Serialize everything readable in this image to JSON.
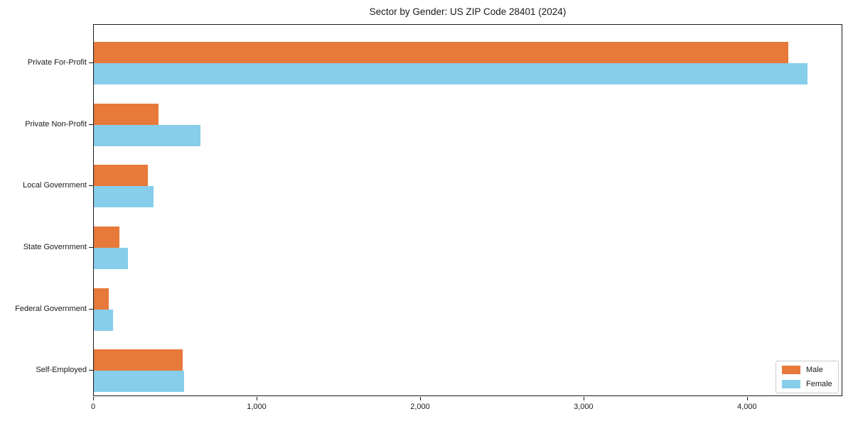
{
  "title": "Sector by Gender: US ZIP Code 28401 (2024)",
  "colors": {
    "male": "#e7793a",
    "female": "#87ceeb",
    "spine": "#1a1a1a",
    "legend_border": "#cccccc",
    "background": "#ffffff"
  },
  "chart_data": {
    "type": "bar",
    "orientation": "horizontal",
    "title": "Sector by Gender: US ZIP Code 28401 (2024)",
    "categories": [
      "Private For-Profit",
      "Private Non-Profit",
      "Local Government",
      "State Government",
      "Federal Government",
      "Self-Employed"
    ],
    "series": [
      {
        "name": "Male",
        "color": "#e7793a",
        "values": [
          4250,
          397,
          332,
          158,
          90,
          545
        ]
      },
      {
        "name": "Female",
        "color": "#87ceeb",
        "values": [
          4365,
          652,
          365,
          210,
          119,
          552
        ]
      }
    ],
    "xlabel": "",
    "ylabel": "",
    "xlim": [
      0,
      4583
    ],
    "xticks": {
      "values": [
        0,
        1000,
        2000,
        3000,
        4000
      ],
      "labels": [
        "0",
        "1,000",
        "2,000",
        "3,000",
        "4,000"
      ]
    },
    "legend": {
      "position": "lower right",
      "entries": [
        "Male",
        "Female"
      ]
    },
    "grid": false
  }
}
